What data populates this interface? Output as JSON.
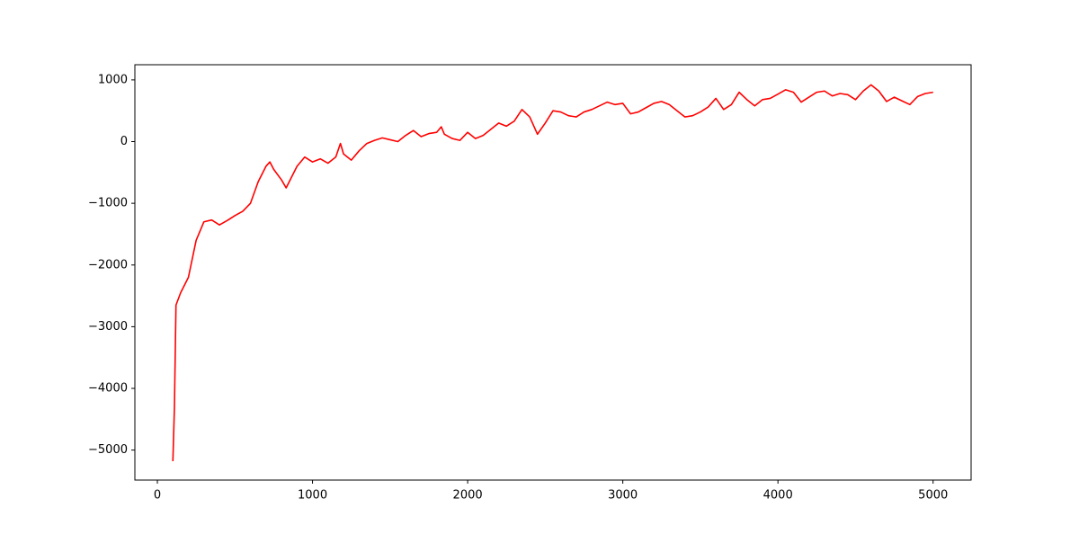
{
  "chart_data": {
    "type": "line",
    "x": [
      100,
      110,
      120,
      150,
      200,
      250,
      300,
      350,
      400,
      450,
      500,
      550,
      600,
      650,
      700,
      725,
      750,
      800,
      830,
      850,
      900,
      950,
      1000,
      1050,
      1100,
      1150,
      1180,
      1200,
      1250,
      1300,
      1350,
      1400,
      1450,
      1500,
      1550,
      1600,
      1650,
      1700,
      1750,
      1800,
      1830,
      1850,
      1900,
      1950,
      2000,
      2050,
      2100,
      2150,
      2200,
      2250,
      2300,
      2350,
      2400,
      2450,
      2500,
      2550,
      2600,
      2650,
      2700,
      2750,
      2800,
      2850,
      2900,
      2950,
      3000,
      3050,
      3100,
      3150,
      3200,
      3250,
      3300,
      3350,
      3400,
      3450,
      3500,
      3550,
      3600,
      3650,
      3700,
      3750,
      3800,
      3850,
      3900,
      3950,
      4000,
      4050,
      4100,
      4150,
      4200,
      4250,
      4300,
      4350,
      4400,
      4450,
      4500,
      4550,
      4600,
      4650,
      4700,
      4750,
      4800,
      4850,
      4900,
      4950,
      5000
    ],
    "series": [
      {
        "color": "#ff0000",
        "values": [
          -5180,
          -4300,
          -2650,
          -2450,
          -2200,
          -1600,
          -1300,
          -1270,
          -1350,
          -1280,
          -1200,
          -1130,
          -1000,
          -650,
          -400,
          -330,
          -450,
          -620,
          -750,
          -650,
          -400,
          -250,
          -330,
          -280,
          -350,
          -250,
          -30,
          -200,
          -300,
          -150,
          -30,
          20,
          60,
          30,
          0,
          100,
          180,
          80,
          130,
          150,
          240,
          120,
          50,
          20,
          150,
          50,
          100,
          200,
          300,
          250,
          330,
          520,
          400,
          120,
          300,
          500,
          480,
          420,
          400,
          480,
          520,
          580,
          640,
          600,
          620,
          450,
          480,
          550,
          620,
          650,
          600,
          500,
          400,
          420,
          480,
          560,
          700,
          520,
          600,
          800,
          680,
          580,
          680,
          700,
          770,
          840,
          800,
          640,
          720,
          800,
          820,
          740,
          780,
          760,
          680,
          820,
          920,
          820,
          650,
          720,
          660,
          600,
          730,
          780,
          800
        ]
      }
    ],
    "xlim": [
      -145,
      5245
    ],
    "xticks": [
      0,
      1000,
      2000,
      3000,
      4000,
      5000
    ],
    "ylim": [
      -5486,
      1246
    ],
    "yticks": [
      {
        "value": -5000,
        "label": "−5000"
      },
      {
        "value": -4000,
        "label": "−4000"
      },
      {
        "value": -3000,
        "label": "−3000"
      },
      {
        "value": -2000,
        "label": "−2000"
      },
      {
        "value": -1000,
        "label": "−1000"
      },
      0,
      1000
    ]
  }
}
